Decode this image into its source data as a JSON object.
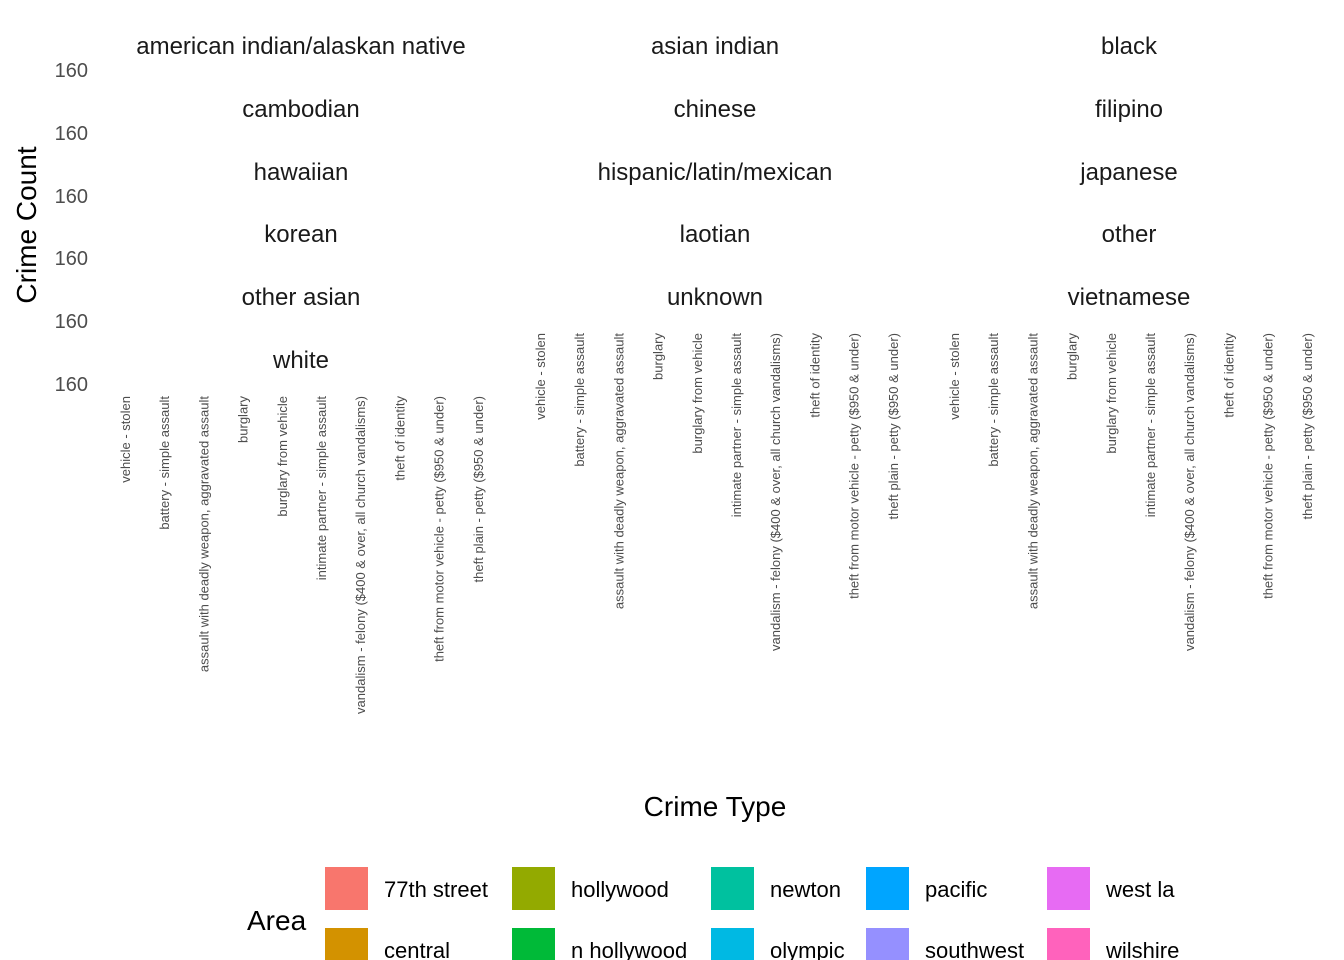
{
  "chart_data": {
    "type": "bar",
    "title": "",
    "xlabel": "Crime Type",
    "ylabel": "Crime Count",
    "facets": [
      "american indian/alaskan native",
      "asian indian",
      "black",
      "cambodian",
      "chinese",
      "filipino",
      "hawaiian",
      "hispanic/latin/mexican",
      "japanese",
      "korean",
      "laotian",
      "other",
      "other asian",
      "unknown",
      "vietnamese",
      "white"
    ],
    "y_tick_labels": [
      "160",
      "160",
      "160",
      "160",
      "160",
      "160"
    ],
    "categories": [
      "vehicle - stolen",
      "battery - simple assault",
      "assault with deadly weapon, aggravated assault",
      "burglary",
      "burglary from vehicle",
      "intimate partner - simple assault",
      "vandalism - felony ($400 & over, all church vandalisms)",
      "theft of identity",
      "theft from motor vehicle - petty ($950 & under)",
      "theft plain - petty ($950 & under)"
    ],
    "legend": {
      "title": "Area",
      "placement": "bottom",
      "items": [
        {
          "label": "77th street",
          "color": "#F8766D"
        },
        {
          "label": "central",
          "color": "#D39200"
        },
        {
          "label": "hollywood",
          "color": "#93AA00"
        },
        {
          "label": "n hollywood",
          "color": "#00BA38"
        },
        {
          "label": "newton",
          "color": "#00C19F"
        },
        {
          "label": "olympic",
          "color": "#00B9E3"
        },
        {
          "label": "pacific",
          "color": "#00A5FF"
        },
        {
          "label": "southwest",
          "color": "#9590FF"
        },
        {
          "label": "west la",
          "color": "#E76BF3"
        },
        {
          "label": "wilshire",
          "color": "#FF62BC"
        }
      ]
    },
    "grid": false,
    "series": []
  }
}
